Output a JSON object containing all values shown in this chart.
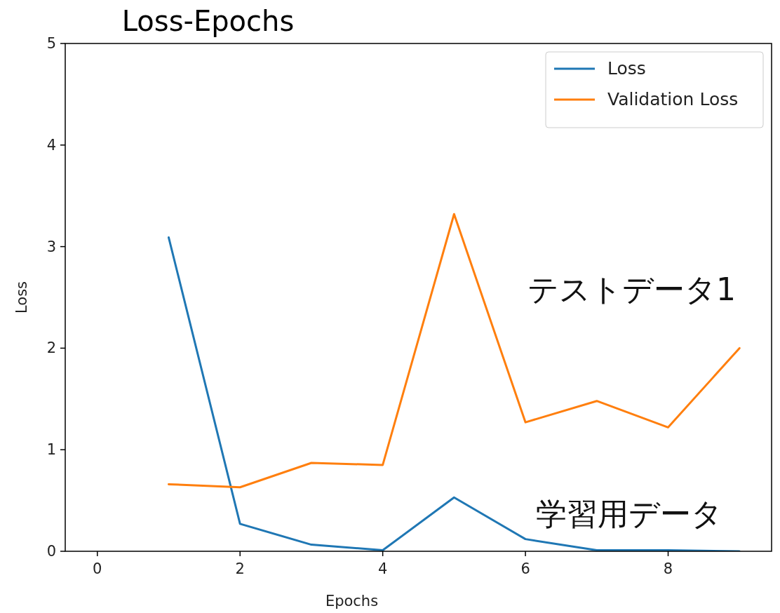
{
  "chart_data": {
    "type": "line",
    "title": "Loss-Epochs",
    "xlabel": "Epochs",
    "ylabel": "Loss",
    "x": [
      1,
      2,
      3,
      4,
      5,
      6,
      7,
      8,
      9
    ],
    "series": [
      {
        "name": "Loss",
        "color": "#1f77b4",
        "values": [
          3.09,
          0.27,
          0.065,
          0.01,
          0.53,
          0.12,
          0.01,
          0.01,
          0.0
        ]
      },
      {
        "name": "Validation Loss",
        "color": "#ff7f0e",
        "values": [
          0.66,
          0.63,
          0.87,
          0.85,
          3.32,
          1.27,
          1.48,
          1.22,
          2.0
        ]
      }
    ],
    "xlim": [
      -0.45,
      9.45
    ],
    "ylim": [
      0,
      5
    ],
    "xticks": [
      0,
      2,
      4,
      6,
      8
    ],
    "yticks": [
      0,
      1,
      2,
      3,
      4,
      5
    ],
    "annotations": [
      "テストデータ1",
      "学習用データ"
    ],
    "legend": "top right",
    "grid": false,
    "marker": "none",
    "line_style": "solid"
  }
}
